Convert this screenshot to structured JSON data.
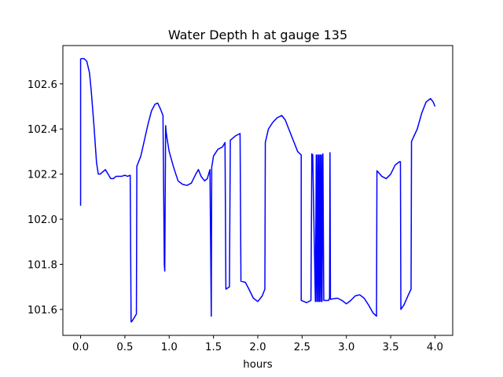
{
  "chart_data": {
    "type": "line",
    "title": "Water Depth h at gauge 135",
    "xlabel": "hours",
    "ylabel": "",
    "xlim": [
      -0.2,
      4.2
    ],
    "ylim": [
      101.485,
      102.77
    ],
    "xticks": [
      0.0,
      0.5,
      1.0,
      1.5,
      2.0,
      2.5,
      3.0,
      3.5,
      4.0
    ],
    "xtick_labels": [
      "0.0",
      "0.5",
      "1.0",
      "1.5",
      "2.0",
      "2.5",
      "3.0",
      "3.5",
      "4.0"
    ],
    "yticks": [
      101.6,
      101.8,
      102.0,
      102.2,
      102.4,
      102.6
    ],
    "ytick_labels": [
      "101.6",
      "101.8",
      "102.0",
      "102.2",
      "102.4",
      "102.6"
    ],
    "grid": false,
    "series": [
      {
        "color": "#0000ff",
        "x": [
          0.0,
          0.0,
          0.01,
          0.04,
          0.07,
          0.1,
          0.12,
          0.15,
          0.18,
          0.2,
          0.22,
          0.25,
          0.28,
          0.31,
          0.34,
          0.37,
          0.4,
          0.43,
          0.46,
          0.5,
          0.53,
          0.56,
          0.57,
          0.575,
          0.6,
          0.63,
          0.635,
          0.68,
          0.72,
          0.76,
          0.8,
          0.84,
          0.87,
          0.9,
          0.93,
          0.945,
          0.95,
          0.96,
          0.965,
          0.975,
          1.0,
          1.05,
          1.1,
          1.15,
          1.2,
          1.25,
          1.3,
          1.33,
          1.36,
          1.4,
          1.43,
          1.46,
          1.475,
          1.48,
          1.5,
          1.55,
          1.6,
          1.63,
          1.64,
          1.68,
          1.69,
          1.75,
          1.8,
          1.81,
          1.86,
          1.9,
          1.95,
          2.0,
          2.05,
          2.08,
          2.085,
          2.12,
          2.17,
          2.22,
          2.27,
          2.31,
          2.35,
          2.4,
          2.45,
          2.49,
          2.49,
          2.55,
          2.6,
          2.61,
          2.62,
          2.65,
          2.66,
          2.665,
          2.675,
          2.68,
          2.69,
          2.695,
          2.705,
          2.71,
          2.72,
          2.725,
          2.735,
          2.745,
          2.8,
          2.81,
          2.815,
          2.82,
          2.9,
          2.95,
          3.0,
          3.05,
          3.1,
          3.15,
          3.2,
          3.25,
          3.3,
          3.34,
          3.345,
          3.4,
          3.45,
          3.5,
          3.55,
          3.6,
          3.61,
          3.615,
          3.65,
          3.7,
          3.73,
          3.735,
          3.8,
          3.85,
          3.9,
          3.95,
          3.98,
          4.0
        ],
        "y": [
          102.06,
          102.71,
          102.712,
          102.712,
          102.7,
          102.65,
          102.57,
          102.42,
          102.25,
          102.2,
          102.2,
          102.21,
          102.22,
          102.2,
          102.18,
          102.18,
          102.19,
          102.19,
          102.19,
          102.195,
          102.19,
          102.195,
          101.545,
          101.545,
          101.56,
          101.58,
          102.235,
          102.28,
          102.35,
          102.42,
          102.48,
          102.51,
          102.515,
          102.49,
          102.46,
          101.8,
          101.77,
          102.415,
          102.39,
          102.36,
          102.3,
          102.23,
          102.17,
          102.155,
          102.15,
          102.16,
          102.2,
          102.22,
          102.19,
          102.17,
          102.18,
          102.22,
          101.57,
          102.23,
          102.28,
          102.31,
          102.32,
          102.34,
          101.69,
          101.7,
          102.35,
          102.37,
          102.38,
          101.725,
          101.72,
          101.69,
          101.65,
          101.635,
          101.66,
          101.69,
          102.34,
          102.4,
          102.43,
          102.45,
          102.46,
          102.44,
          102.4,
          102.35,
          102.3,
          102.285,
          101.64,
          101.63,
          101.64,
          102.29,
          102.285,
          101.635,
          102.285,
          101.635,
          102.285,
          101.635,
          102.285,
          101.635,
          102.285,
          101.635,
          102.285,
          101.635,
          102.29,
          101.64,
          101.64,
          101.65,
          102.295,
          101.645,
          101.65,
          101.64,
          101.625,
          101.64,
          101.66,
          101.665,
          101.65,
          101.62,
          101.585,
          101.57,
          102.215,
          102.19,
          102.18,
          102.2,
          102.24,
          102.255,
          102.255,
          101.6,
          101.62,
          101.665,
          101.69,
          102.345,
          102.4,
          102.47,
          102.52,
          102.535,
          102.52,
          102.5
        ]
      }
    ]
  }
}
